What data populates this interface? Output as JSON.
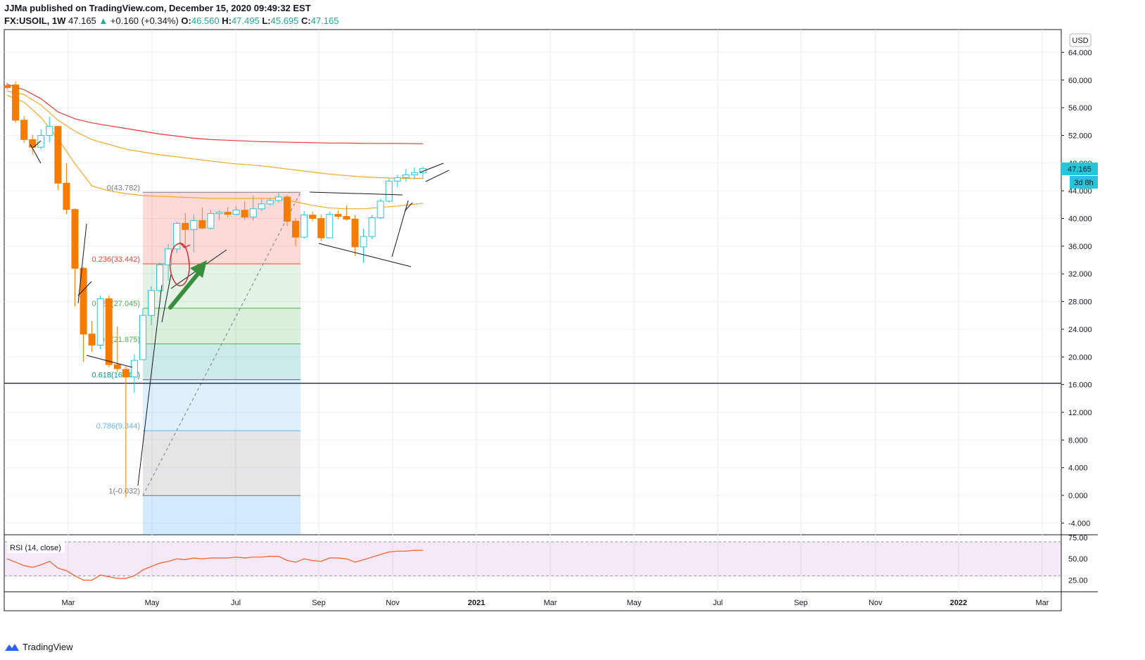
{
  "header": {
    "publisher": "JJMa published on TradingView.com, December 15, 2020 09:49:32 EST",
    "symbol": "FX:USOIL, 1W",
    "last": "47.165",
    "arrow": "▲",
    "change": "+0.160 (+0.34%)",
    "o_label": "O:",
    "o_value": "46.560",
    "h_label": "H:",
    "h_value": "47.495",
    "l_label": "L:",
    "l_value": "45.695",
    "c_label": "C:",
    "c_value": "47.165"
  },
  "footer": {
    "brand": "TradingView",
    "icon": "tradingview-logo-icon"
  },
  "colors": {
    "up": "#26c6da",
    "down": "#f57c00",
    "ma_red": "#e53935",
    "ma_orange": "#f9a825",
    "fib_red": "#f44336",
    "fib_green": "#4caf50",
    "fib_teal": "#009688",
    "fib_blue": "#64b5f6",
    "rsi": "#ff5722",
    "rsi_band": "#e1bee7",
    "arrow": "#388e3c",
    "price_badge": "#26c6da"
  },
  "chart_data": [
    {
      "type": "candlestick",
      "currency": "USD",
      "ylim": [
        -6,
        66
      ],
      "y_ticks": [
        "64.000",
        "60.000",
        "56.000",
        "52.000",
        "48.000",
        "44.000",
        "40.000",
        "36.000",
        "32.000",
        "28.000",
        "24.000",
        "20.000",
        "16.000",
        "12.000",
        "8.000",
        "4.000",
        "0.000",
        "-4.000"
      ],
      "x_ticks": [
        "Mar",
        "May",
        "Jul",
        "Sep",
        "Nov",
        "2021",
        "Mar",
        "May",
        "Jul",
        "Sep",
        "Nov",
        "2022",
        "Mar"
      ],
      "x_tick_months": [
        2,
        4,
        6,
        8,
        10,
        12,
        14,
        16,
        18,
        20,
        22,
        24,
        26
      ],
      "x_range_months": [
        0.2,
        27.2
      ],
      "last_price_label": "47.165",
      "countdown_label": "3d 8h",
      "horizontal_line": 16.2,
      "candles": [
        {
          "o": 59.2,
          "h": 59.6,
          "l": 58.6,
          "c": 58.9
        },
        {
          "o": 59.3,
          "h": 59.8,
          "l": 53.8,
          "c": 54.2
        },
        {
          "o": 54.2,
          "h": 54.8,
          "l": 50.9,
          "c": 51.4
        },
        {
          "o": 51.4,
          "h": 52.1,
          "l": 49.2,
          "c": 50.3
        },
        {
          "o": 50.3,
          "h": 52.9,
          "l": 50.0,
          "c": 52.0
        },
        {
          "o": 52.0,
          "h": 54.7,
          "l": 51.0,
          "c": 53.3
        },
        {
          "o": 53.3,
          "h": 53.4,
          "l": 44.1,
          "c": 45.1
        },
        {
          "o": 45.1,
          "h": 48.0,
          "l": 40.6,
          "c": 41.3
        },
        {
          "o": 41.3,
          "h": 41.5,
          "l": 27.3,
          "c": 32.8
        },
        {
          "o": 32.8,
          "h": 33.0,
          "l": 19.3,
          "c": 23.3
        },
        {
          "o": 23.3,
          "h": 25.2,
          "l": 20.7,
          "c": 21.7
        },
        {
          "o": 21.7,
          "h": 28.9,
          "l": 21.1,
          "c": 28.4
        },
        {
          "o": 28.4,
          "h": 28.9,
          "l": 18.5,
          "c": 18.9
        },
        {
          "o": 18.9,
          "h": 24.4,
          "l": 17.8,
          "c": 18.3
        },
        {
          "o": 18.2,
          "h": 18.6,
          "l": -0.3,
          "c": 17.1
        },
        {
          "o": 17.1,
          "h": 20.4,
          "l": 14.8,
          "c": 19.5
        },
        {
          "o": 19.6,
          "h": 27.0,
          "l": 19.5,
          "c": 26.0
        },
        {
          "o": 26.0,
          "h": 30.2,
          "l": 24.6,
          "c": 29.6
        },
        {
          "o": 29.6,
          "h": 33.7,
          "l": 29.3,
          "c": 33.3
        },
        {
          "o": 33.3,
          "h": 36.3,
          "l": 31.0,
          "c": 35.6
        },
        {
          "o": 35.6,
          "h": 39.5,
          "l": 35.0,
          "c": 39.3
        },
        {
          "o": 39.3,
          "h": 40.8,
          "l": 35.8,
          "c": 38.4
        },
        {
          "o": 38.4,
          "h": 40.6,
          "l": 35.1,
          "c": 39.7
        },
        {
          "o": 39.7,
          "h": 41.6,
          "l": 38.5,
          "c": 38.6
        },
        {
          "o": 38.6,
          "h": 41.2,
          "l": 38.4,
          "c": 40.7
        },
        {
          "o": 40.7,
          "h": 41.2,
          "l": 39.8,
          "c": 40.9
        },
        {
          "o": 40.9,
          "h": 41.6,
          "l": 40.2,
          "c": 40.6
        },
        {
          "o": 40.6,
          "h": 41.8,
          "l": 40.5,
          "c": 41.2
        },
        {
          "o": 41.2,
          "h": 42.5,
          "l": 39.8,
          "c": 40.2
        },
        {
          "o": 40.2,
          "h": 43.3,
          "l": 39.7,
          "c": 41.4
        },
        {
          "o": 41.4,
          "h": 42.8,
          "l": 41.1,
          "c": 42.1
        },
        {
          "o": 42.1,
          "h": 43.0,
          "l": 41.9,
          "c": 42.6
        },
        {
          "o": 42.6,
          "h": 43.7,
          "l": 42.3,
          "c": 43.1
        },
        {
          "o": 43.1,
          "h": 43.4,
          "l": 38.9,
          "c": 39.6
        },
        {
          "o": 39.6,
          "h": 40.1,
          "l": 36.0,
          "c": 37.3
        },
        {
          "o": 37.3,
          "h": 41.1,
          "l": 37.1,
          "c": 40.5
        },
        {
          "o": 40.5,
          "h": 41.0,
          "l": 39.6,
          "c": 40.0
        },
        {
          "o": 40.0,
          "h": 40.6,
          "l": 36.7,
          "c": 37.2
        },
        {
          "o": 37.2,
          "h": 41.0,
          "l": 37.1,
          "c": 40.6
        },
        {
          "o": 40.6,
          "h": 41.2,
          "l": 39.9,
          "c": 40.3
        },
        {
          "o": 40.3,
          "h": 41.9,
          "l": 39.7,
          "c": 39.9
        },
        {
          "o": 39.9,
          "h": 40.5,
          "l": 34.6,
          "c": 35.9
        },
        {
          "o": 35.9,
          "h": 38.5,
          "l": 33.6,
          "c": 37.4
        },
        {
          "o": 37.4,
          "h": 40.5,
          "l": 37.0,
          "c": 40.1
        },
        {
          "o": 40.1,
          "h": 42.8,
          "l": 39.9,
          "c": 42.5
        },
        {
          "o": 42.5,
          "h": 45.8,
          "l": 42.3,
          "c": 45.4
        },
        {
          "o": 45.4,
          "h": 46.3,
          "l": 44.5,
          "c": 45.9
        },
        {
          "o": 45.9,
          "h": 47.2,
          "l": 45.3,
          "c": 46.3
        },
        {
          "o": 46.3,
          "h": 47.4,
          "l": 45.6,
          "c": 46.6
        },
        {
          "o": 46.6,
          "h": 47.5,
          "l": 45.7,
          "c": 47.2
        }
      ],
      "ma_red": [
        [
          0,
          59.4
        ],
        [
          2,
          58.6
        ],
        [
          4,
          57.3
        ],
        [
          6,
          55.4
        ],
        [
          8,
          54.4
        ],
        [
          10,
          53.8
        ],
        [
          12,
          53.4
        ],
        [
          14,
          53.0
        ],
        [
          16,
          52.6
        ],
        [
          18,
          52.2
        ],
        [
          20,
          51.9
        ],
        [
          22,
          51.6
        ],
        [
          24,
          51.4
        ],
        [
          26,
          51.3
        ],
        [
          28,
          51.2
        ],
        [
          30,
          51.1
        ],
        [
          32,
          51.05
        ],
        [
          34,
          51.0
        ],
        [
          36,
          50.95
        ],
        [
          38,
          50.9
        ],
        [
          40,
          50.9
        ],
        [
          42,
          50.85
        ],
        [
          44,
          50.85
        ],
        [
          46,
          50.85
        ],
        [
          49,
          50.8
        ]
      ],
      "ma_orange_long": [
        [
          0,
          58.4
        ],
        [
          2,
          57.9
        ],
        [
          4,
          56.4
        ],
        [
          6,
          54.2
        ],
        [
          8,
          52.6
        ],
        [
          10,
          51.4
        ],
        [
          12,
          50.7
        ],
        [
          14,
          50.0
        ],
        [
          16,
          49.6
        ],
        [
          18,
          49.2
        ],
        [
          20,
          48.9
        ],
        [
          22,
          48.6
        ],
        [
          24,
          48.3
        ],
        [
          26,
          48.0
        ],
        [
          28,
          47.8
        ],
        [
          30,
          47.6
        ],
        [
          32,
          47.3
        ],
        [
          34,
          47.0
        ],
        [
          36,
          46.7
        ],
        [
          38,
          46.4
        ],
        [
          40,
          46.2
        ],
        [
          42,
          46.0
        ],
        [
          44,
          45.9
        ],
        [
          46,
          45.8
        ],
        [
          49,
          45.8
        ]
      ],
      "ma_orange_short": [
        [
          0,
          57.8
        ],
        [
          2,
          56.8
        ],
        [
          4,
          54.6
        ],
        [
          6,
          51.5
        ],
        [
          8,
          47.9
        ],
        [
          10,
          44.7
        ],
        [
          12,
          44.0
        ],
        [
          14,
          43.6
        ],
        [
          16,
          43.3
        ],
        [
          18,
          43.2
        ],
        [
          20,
          43.1
        ],
        [
          22,
          43.0
        ],
        [
          24,
          42.9
        ],
        [
          26,
          42.9
        ],
        [
          28,
          42.9
        ],
        [
          30,
          42.9
        ],
        [
          32,
          42.9
        ],
        [
          34,
          42.4
        ],
        [
          36,
          41.9
        ],
        [
          38,
          41.5
        ],
        [
          40,
          41.4
        ],
        [
          42,
          41.4
        ],
        [
          44,
          41.6
        ],
        [
          46,
          41.8
        ],
        [
          49,
          42.2
        ]
      ],
      "fibonacci": {
        "levels": [
          {
            "ratio": 0,
            "price": 43.782,
            "label": "0(43.782)"
          },
          {
            "ratio": 0.236,
            "price": 33.442,
            "label": "0.236(33.442)"
          },
          {
            "ratio": 0.382,
            "price": 27.045,
            "label": "0.382(27.045)"
          },
          {
            "ratio": 0.5,
            "price": 21.875,
            "label": "0.5(21.875)"
          },
          {
            "ratio": 0.618,
            "price": 16.705,
            "label": "0.618(16.705)"
          },
          {
            "ratio": 0.786,
            "price": 9.344,
            "label": "0.786(9.344)"
          },
          {
            "ratio": 1,
            "price": -0.032,
            "label": "1(-0.032)"
          }
        ],
        "start_candle": 14.8,
        "end_candle": 33.7
      }
    },
    {
      "type": "line",
      "name": "RSI (14, close)",
      "ylim": [
        10,
        80
      ],
      "y_ticks": [
        "75.00",
        "50.00",
        "25.00"
      ],
      "bands": [
        70,
        30
      ],
      "values": [
        50,
        46,
        42,
        40,
        43,
        47,
        39,
        36,
        30,
        25,
        25,
        31,
        29,
        27,
        27,
        30,
        37,
        41,
        45,
        47,
        50,
        49,
        51,
        50,
        51,
        51,
        51,
        52,
        51,
        52,
        52,
        53,
        53,
        48,
        46,
        50,
        48,
        47,
        51,
        51,
        50,
        46,
        49,
        52,
        55,
        58,
        59,
        59,
        60,
        60
      ]
    }
  ]
}
